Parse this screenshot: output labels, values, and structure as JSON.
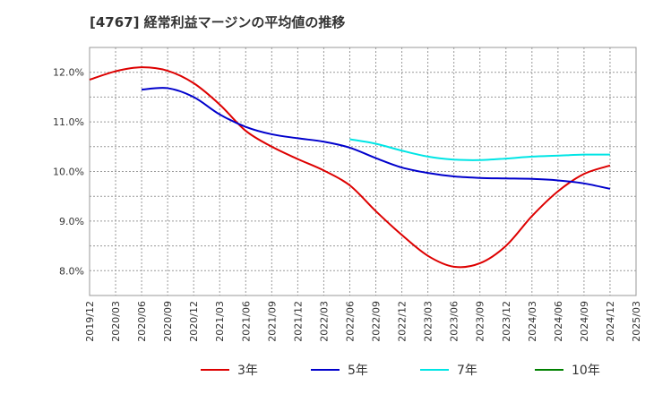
{
  "chart_data": {
    "type": "line",
    "title": "[4767]  経常利益マージンの平均値の推移",
    "xlabel": "",
    "ylabel": "",
    "x_ticks": [
      "2019/12",
      "2020/03",
      "2020/06",
      "2020/09",
      "2020/12",
      "2021/03",
      "2021/06",
      "2021/09",
      "2021/12",
      "2022/03",
      "2022/06",
      "2022/09",
      "2022/12",
      "2023/03",
      "2023/06",
      "2023/09",
      "2023/12",
      "2024/03",
      "2024/06",
      "2024/09",
      "2024/12",
      "2025/03"
    ],
    "y_ticks": [
      "8.0%",
      "9.0%",
      "10.0%",
      "11.0%",
      "12.0%"
    ],
    "ylim": [
      7.5,
      12.5
    ],
    "grid": true,
    "legend_position": "bottom",
    "series": [
      {
        "name": "3年",
        "color": "#dd0000",
        "x": [
          "2019/12",
          "2020/03",
          "2020/06",
          "2020/09",
          "2020/12",
          "2021/03",
          "2021/06",
          "2021/09",
          "2021/12",
          "2022/03",
          "2022/06",
          "2022/09",
          "2022/12",
          "2023/03",
          "2023/06",
          "2023/09",
          "2023/12",
          "2024/03",
          "2024/06",
          "2024/09",
          "2024/12"
        ],
        "values": [
          11.85,
          12.02,
          12.1,
          12.03,
          11.78,
          11.35,
          10.82,
          10.5,
          10.25,
          10.02,
          9.72,
          9.2,
          8.72,
          8.3,
          8.08,
          8.15,
          8.5,
          9.1,
          9.6,
          9.95,
          10.12
        ]
      },
      {
        "name": "5年",
        "color": "#0000cc",
        "x": [
          "2020/06",
          "2020/09",
          "2020/12",
          "2021/03",
          "2021/06",
          "2021/09",
          "2021/12",
          "2022/03",
          "2022/06",
          "2022/09",
          "2022/12",
          "2023/03",
          "2023/06",
          "2023/09",
          "2023/12",
          "2024/03",
          "2024/06",
          "2024/09",
          "2024/12"
        ],
        "values": [
          11.65,
          11.68,
          11.5,
          11.15,
          10.9,
          10.75,
          10.67,
          10.6,
          10.48,
          10.27,
          10.08,
          9.97,
          9.9,
          9.87,
          9.86,
          9.85,
          9.82,
          9.76,
          9.65
        ]
      },
      {
        "name": "7年",
        "color": "#00e5e5",
        "x": [
          "2022/06",
          "2022/09",
          "2022/12",
          "2023/03",
          "2023/06",
          "2023/09",
          "2023/12",
          "2024/03",
          "2024/06",
          "2024/09",
          "2024/12"
        ],
        "values": [
          10.65,
          10.56,
          10.42,
          10.3,
          10.24,
          10.23,
          10.26,
          10.3,
          10.32,
          10.34,
          10.34
        ]
      },
      {
        "name": "10年",
        "color": "#008000",
        "x": [],
        "values": []
      }
    ]
  }
}
